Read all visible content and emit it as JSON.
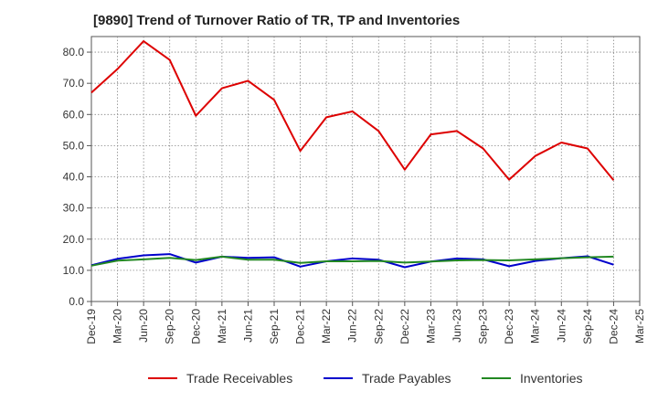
{
  "chart_data": {
    "type": "line",
    "title": "[9890]  Trend of Turnover Ratio of TR, TP and Inventories",
    "xlabel": "",
    "ylabel": "",
    "ylim": [
      0,
      85
    ],
    "yticks": [
      0,
      10,
      20,
      30,
      40,
      50,
      60,
      70,
      80
    ],
    "ytick_labels": [
      "0.0",
      "10.0",
      "20.0",
      "30.0",
      "40.0",
      "50.0",
      "60.0",
      "70.0",
      "80.0"
    ],
    "x": [
      "Dec-19",
      "Mar-20",
      "Jun-20",
      "Sep-20",
      "Dec-20",
      "Mar-21",
      "Jun-21",
      "Sep-21",
      "Dec-21",
      "Mar-22",
      "Jun-22",
      "Sep-22",
      "Dec-22",
      "Mar-23",
      "Jun-23",
      "Sep-23",
      "Dec-23",
      "Mar-24",
      "Jun-24",
      "Sep-24",
      "Dec-24",
      "Mar-25"
    ],
    "grid": true,
    "legend_position": "bottom",
    "series": [
      {
        "name": "Trade Receivables",
        "color": "#dd0000",
        "values": [
          67.0,
          74.6,
          83.5,
          77.5,
          59.6,
          68.4,
          70.8,
          64.7,
          48.3,
          59.1,
          61.0,
          54.7,
          42.3,
          53.6,
          54.7,
          49.1,
          39.1,
          46.7,
          51.0,
          49.1,
          38.9,
          null
        ]
      },
      {
        "name": "Trade Payables",
        "color": "#0000cc",
        "values": [
          11.6,
          13.7,
          14.8,
          15.2,
          12.5,
          14.4,
          14.0,
          14.2,
          11.2,
          12.9,
          13.8,
          13.4,
          11.0,
          12.8,
          13.8,
          13.5,
          11.3,
          13.0,
          13.9,
          14.5,
          11.8,
          null
        ]
      },
      {
        "name": "Inventories",
        "color": "#228822",
        "values": [
          11.5,
          13.1,
          13.5,
          14.0,
          13.3,
          14.4,
          13.4,
          13.4,
          12.4,
          12.9,
          12.9,
          13.0,
          12.5,
          12.8,
          13.2,
          13.3,
          13.2,
          13.5,
          13.9,
          14.2,
          14.4,
          null
        ]
      }
    ]
  }
}
